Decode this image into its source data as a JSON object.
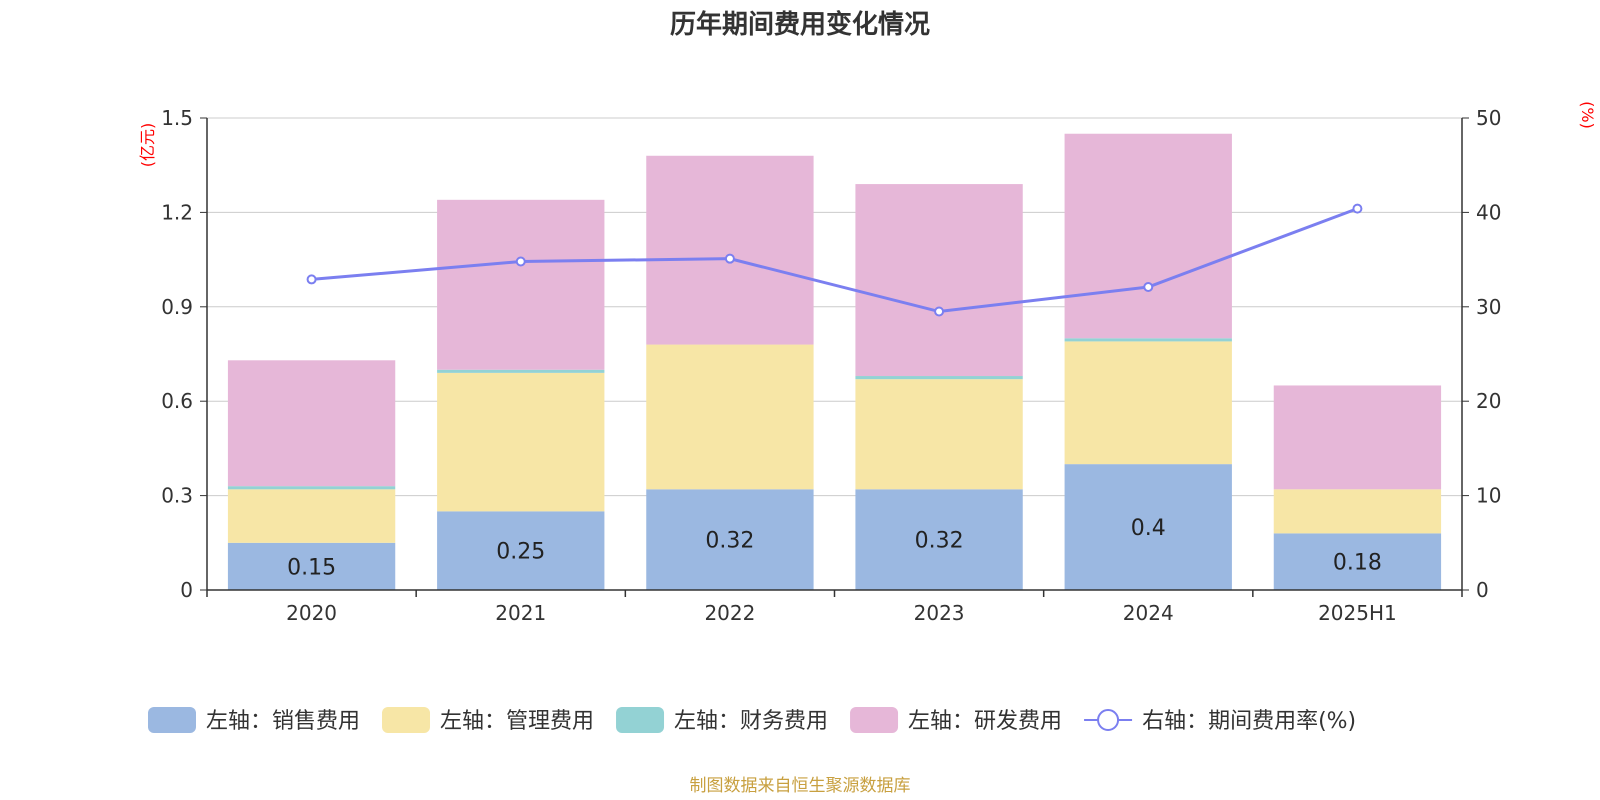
{
  "chart_data": {
    "type": "bar",
    "title": "历年期间费用变化情况",
    "categories": [
      "2020",
      "2021",
      "2022",
      "2023",
      "2024",
      "2025H1"
    ],
    "left_axis": {
      "unit": "(亿元)",
      "ylim": [
        0,
        1.5
      ],
      "ticks": [
        "0",
        "0.3",
        "0.6",
        "0.9",
        "1.2",
        "1.5"
      ]
    },
    "right_axis": {
      "unit": "(%)",
      "ylim": [
        0,
        50
      ],
      "ticks": [
        "0",
        "10",
        "20",
        "30",
        "40",
        "50"
      ]
    },
    "series": [
      {
        "name": "左轴：销售费用",
        "type": "bar",
        "axis": "left",
        "color": "#9bb8e1",
        "values": [
          0.15,
          0.25,
          0.32,
          0.32,
          0.4,
          0.18
        ],
        "labels": [
          "0.15",
          "0.25",
          "0.32",
          "0.32",
          "0.4",
          "0.18"
        ]
      },
      {
        "name": "左轴：管理费用",
        "type": "bar",
        "axis": "left",
        "color": "#f7e6a6",
        "values": [
          0.17,
          0.44,
          0.46,
          0.35,
          0.39,
          0.14
        ]
      },
      {
        "name": "左轴：财务费用",
        "type": "bar",
        "axis": "left",
        "color": "#93d2d4",
        "values": [
          0.01,
          0.01,
          0.0,
          0.01,
          0.01,
          0.0
        ]
      },
      {
        "name": "左轴：研发费用",
        "type": "bar",
        "axis": "left",
        "color": "#e6b7d8",
        "values": [
          0.4,
          0.54,
          0.6,
          0.61,
          0.65,
          0.33
        ]
      },
      {
        "name": "右轴：期间费用率(%)",
        "type": "line",
        "axis": "right",
        "color": "#7b7ff0",
        "values": [
          32.9,
          34.8,
          35.1,
          29.5,
          32.1,
          40.4
        ]
      }
    ],
    "grid": true,
    "legend_position": "bottom",
    "stacked": true
  },
  "source": "制图数据来自恒生聚源数据库"
}
